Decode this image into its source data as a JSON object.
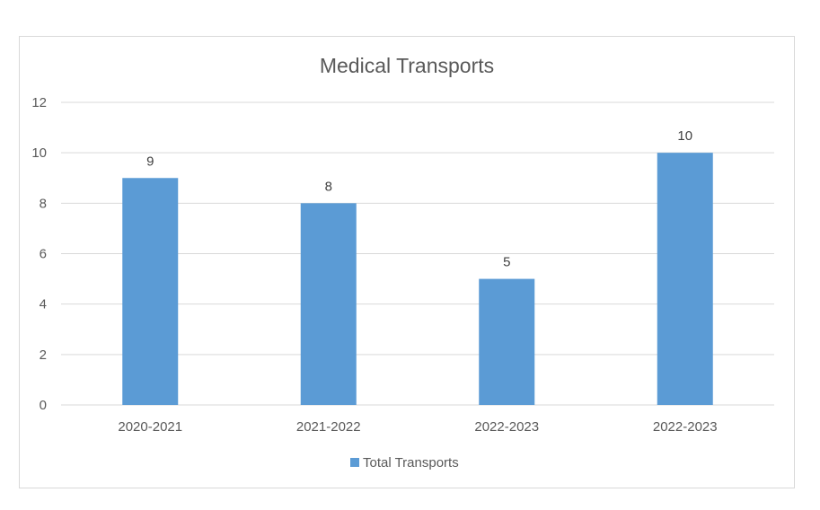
{
  "chart_data": {
    "type": "bar",
    "title": "Medical Transports",
    "categories": [
      "2020-2021",
      "2021-2022",
      "2022-2023",
      "2022-2023"
    ],
    "series": [
      {
        "name": "Total Transports",
        "values": [
          9,
          8,
          5,
          10
        ],
        "color": "#5b9bd5"
      }
    ],
    "ylim": [
      0,
      12
    ],
    "yticks": [
      0,
      2,
      4,
      6,
      8,
      10,
      12
    ],
    "grid": true,
    "legend": "bottom",
    "data_labels": true
  }
}
